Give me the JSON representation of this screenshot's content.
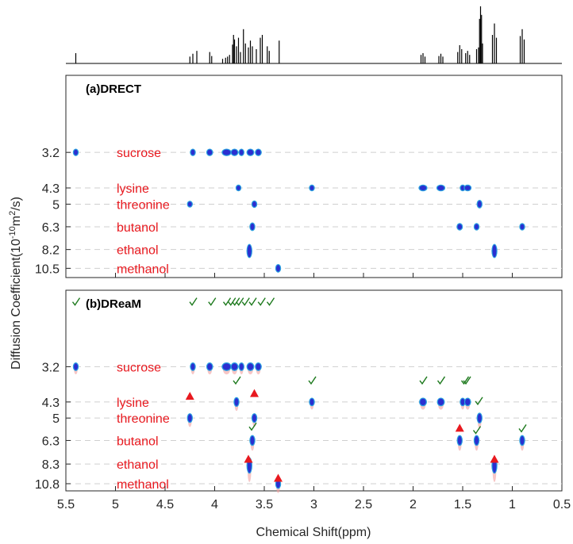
{
  "chart_data": {
    "type": "scatter",
    "xlabel": "Chemical Shift(ppm)",
    "ylabel": "Diffusion Coefficient(10",
    "ylabel_exp": "-10",
    "ylabel_mid": "m",
    "ylabel_exp2": "2",
    "ylabel_end": "/s)",
    "xlim": [
      5.5,
      0.5
    ],
    "x_ticks": [
      5.5,
      5,
      4.5,
      4,
      3.5,
      3,
      2.5,
      2,
      1.5,
      1,
      0.5
    ],
    "x_tick_labels": [
      "5.5",
      "5",
      "4.5",
      "4",
      "3.5",
      "3",
      "2.5",
      "2",
      "1.5",
      "1",
      "0.5"
    ],
    "colors": {
      "compound_label": "#e8191f",
      "peak_core": "#2b2fd0",
      "peak_edge": "#2aa3e0",
      "check": "#1e7a1e",
      "triangle": "#e8191f",
      "gridline": "#cfcfcf"
    },
    "spectrum": [
      {
        "x": 5.4,
        "h": 0.18
      },
      {
        "x": 4.25,
        "h": 0.12
      },
      {
        "x": 4.22,
        "h": 0.17
      },
      {
        "x": 4.18,
        "h": 0.22
      },
      {
        "x": 4.05,
        "h": 0.2
      },
      {
        "x": 4.03,
        "h": 0.13
      },
      {
        "x": 3.92,
        "h": 0.08
      },
      {
        "x": 3.89,
        "h": 0.1
      },
      {
        "x": 3.87,
        "h": 0.12
      },
      {
        "x": 3.85,
        "h": 0.15
      },
      {
        "x": 3.82,
        "h": 0.33
      },
      {
        "x": 3.81,
        "h": 0.5
      },
      {
        "x": 3.8,
        "h": 0.42
      },
      {
        "x": 3.78,
        "h": 0.3
      },
      {
        "x": 3.76,
        "h": 0.45
      },
      {
        "x": 3.74,
        "h": 0.2
      },
      {
        "x": 3.71,
        "h": 0.6
      },
      {
        "x": 3.69,
        "h": 0.35
      },
      {
        "x": 3.66,
        "h": 0.28
      },
      {
        "x": 3.64,
        "h": 0.4
      },
      {
        "x": 3.62,
        "h": 0.3
      },
      {
        "x": 3.58,
        "h": 0.25
      },
      {
        "x": 3.54,
        "h": 0.45
      },
      {
        "x": 3.52,
        "h": 0.5
      },
      {
        "x": 3.47,
        "h": 0.3
      },
      {
        "x": 3.45,
        "h": 0.22
      },
      {
        "x": 3.35,
        "h": 0.4
      },
      {
        "x": 1.92,
        "h": 0.15
      },
      {
        "x": 1.9,
        "h": 0.18
      },
      {
        "x": 1.88,
        "h": 0.12
      },
      {
        "x": 1.74,
        "h": 0.13
      },
      {
        "x": 1.72,
        "h": 0.17
      },
      {
        "x": 1.7,
        "h": 0.12
      },
      {
        "x": 1.55,
        "h": 0.2
      },
      {
        "x": 1.53,
        "h": 0.32
      },
      {
        "x": 1.51,
        "h": 0.25
      },
      {
        "x": 1.47,
        "h": 0.18
      },
      {
        "x": 1.45,
        "h": 0.22
      },
      {
        "x": 1.43,
        "h": 0.15
      },
      {
        "x": 1.36,
        "h": 0.25
      },
      {
        "x": 1.34,
        "h": 0.28
      },
      {
        "x": 1.33,
        "h": 0.78
      },
      {
        "x": 1.32,
        "h": 1.0
      },
      {
        "x": 1.31,
        "h": 0.85
      },
      {
        "x": 1.3,
        "h": 0.35
      },
      {
        "x": 1.2,
        "h": 0.5
      },
      {
        "x": 1.18,
        "h": 0.7
      },
      {
        "x": 1.16,
        "h": 0.45
      },
      {
        "x": 0.92,
        "h": 0.48
      },
      {
        "x": 0.9,
        "h": 0.6
      },
      {
        "x": 0.88,
        "h": 0.42
      }
    ],
    "panels": [
      {
        "label": "(a)DRECT",
        "ylim": [
          1.9,
          12.0
        ],
        "y_ticks": [
          3.2,
          4.3,
          5,
          6.3,
          8.2,
          10.5
        ],
        "y_tick_labels": [
          "3.2",
          "4.3",
          "5",
          "6.3",
          "8.2",
          "10.5"
        ],
        "compounds": [
          {
            "name": "sucrose",
            "d": 3.2
          },
          {
            "name": "lysine",
            "d": 4.3
          },
          {
            "name": "threonine",
            "d": 5
          },
          {
            "name": "butanol",
            "d": 6.3
          },
          {
            "name": "ethanol",
            "d": 8.2
          },
          {
            "name": "methanol",
            "d": 10.5
          }
        ],
        "peaks": [
          {
            "x": 5.4,
            "d": 3.2,
            "w": 0.035,
            "h": 0.25
          },
          {
            "x": 4.22,
            "d": 3.2,
            "w": 0.035,
            "h": 0.25
          },
          {
            "x": 4.05,
            "d": 3.2,
            "w": 0.05,
            "h": 0.25
          },
          {
            "x": 3.88,
            "d": 3.2,
            "w": 0.08,
            "h": 0.25
          },
          {
            "x": 3.8,
            "d": 3.2,
            "w": 0.06,
            "h": 0.25
          },
          {
            "x": 3.73,
            "d": 3.2,
            "w": 0.04,
            "h": 0.25
          },
          {
            "x": 3.64,
            "d": 3.2,
            "w": 0.06,
            "h": 0.25
          },
          {
            "x": 3.56,
            "d": 3.2,
            "w": 0.05,
            "h": 0.25
          },
          {
            "x": 3.76,
            "d": 4.3,
            "w": 0.02,
            "h": 0.2
          },
          {
            "x": 3.02,
            "d": 4.3,
            "w": 0.04,
            "h": 0.2
          },
          {
            "x": 1.9,
            "d": 4.3,
            "w": 0.07,
            "h": 0.22
          },
          {
            "x": 1.72,
            "d": 4.3,
            "w": 0.07,
            "h": 0.22
          },
          {
            "x": 1.5,
            "d": 4.3,
            "w": 0.03,
            "h": 0.18
          },
          {
            "x": 1.45,
            "d": 4.3,
            "w": 0.06,
            "h": 0.18
          },
          {
            "x": 4.25,
            "d": 5.0,
            "w": 0.04,
            "h": 0.22
          },
          {
            "x": 3.6,
            "d": 5.0,
            "w": 0.02,
            "h": 0.25
          },
          {
            "x": 1.33,
            "d": 5.0,
            "w": 0.025,
            "h": 0.3
          },
          {
            "x": 3.62,
            "d": 6.3,
            "w": 0.03,
            "h": 0.3
          },
          {
            "x": 1.53,
            "d": 6.3,
            "w": 0.045,
            "h": 0.25
          },
          {
            "x": 1.36,
            "d": 6.3,
            "w": 0.035,
            "h": 0.25
          },
          {
            "x": 0.9,
            "d": 6.3,
            "w": 0.035,
            "h": 0.25
          },
          {
            "x": 3.65,
            "d": 8.35,
            "w": 0.03,
            "h": 0.55
          },
          {
            "x": 1.18,
            "d": 8.35,
            "w": 0.03,
            "h": 0.55
          },
          {
            "x": 3.36,
            "d": 10.5,
            "w": 0.015,
            "h": 0.3
          }
        ]
      },
      {
        "label": "(b)DReaM",
        "ylim": [
          1.9,
          12.0
        ],
        "y_ticks": [
          3.2,
          4.3,
          5,
          6.3,
          8.3,
          10.8
        ],
        "y_tick_labels": [
          "3.2",
          "4.3",
          "5",
          "6.3",
          "8.3",
          "10.8"
        ],
        "compounds": [
          {
            "name": "sucrose",
            "d": 3.2
          },
          {
            "name": "lysine",
            "d": 4.3
          },
          {
            "name": "threonine",
            "d": 5
          },
          {
            "name": "butanol",
            "d": 6.3
          },
          {
            "name": "ethanol",
            "d": 8.3
          },
          {
            "name": "methanol",
            "d": 10.8
          }
        ],
        "peaks": [
          {
            "x": 5.4,
            "d": 3.2,
            "w": 0.035,
            "h": 0.3
          },
          {
            "x": 4.22,
            "d": 3.2,
            "w": 0.035,
            "h": 0.3
          },
          {
            "x": 4.05,
            "d": 3.2,
            "w": 0.05,
            "h": 0.3
          },
          {
            "x": 3.88,
            "d": 3.2,
            "w": 0.08,
            "h": 0.3
          },
          {
            "x": 3.8,
            "d": 3.2,
            "w": 0.06,
            "h": 0.3
          },
          {
            "x": 3.73,
            "d": 3.2,
            "w": 0.04,
            "h": 0.3
          },
          {
            "x": 3.64,
            "d": 3.2,
            "w": 0.06,
            "h": 0.3
          },
          {
            "x": 3.56,
            "d": 3.2,
            "w": 0.05,
            "h": 0.3
          },
          {
            "x": 3.78,
            "d": 4.3,
            "w": 0.025,
            "h": 0.35
          },
          {
            "x": 3.02,
            "d": 4.3,
            "w": 0.03,
            "h": 0.3
          },
          {
            "x": 1.9,
            "d": 4.3,
            "w": 0.06,
            "h": 0.3
          },
          {
            "x": 1.72,
            "d": 4.3,
            "w": 0.06,
            "h": 0.3
          },
          {
            "x": 1.5,
            "d": 4.3,
            "w": 0.03,
            "h": 0.3
          },
          {
            "x": 1.45,
            "d": 4.3,
            "w": 0.05,
            "h": 0.3
          },
          {
            "x": 4.25,
            "d": 5.0,
            "w": 0.03,
            "h": 0.35
          },
          {
            "x": 3.6,
            "d": 5.0,
            "w": 0.025,
            "h": 0.35
          },
          {
            "x": 1.33,
            "d": 5.0,
            "w": 0.025,
            "h": 0.4
          },
          {
            "x": 3.62,
            "d": 6.3,
            "w": 0.03,
            "h": 0.4
          },
          {
            "x": 1.53,
            "d": 6.3,
            "w": 0.04,
            "h": 0.4
          },
          {
            "x": 1.36,
            "d": 6.3,
            "w": 0.035,
            "h": 0.4
          },
          {
            "x": 0.9,
            "d": 6.3,
            "w": 0.035,
            "h": 0.4
          },
          {
            "x": 3.65,
            "d": 8.45,
            "w": 0.03,
            "h": 0.65
          },
          {
            "x": 1.18,
            "d": 8.45,
            "w": 0.03,
            "h": 0.65
          },
          {
            "x": 3.36,
            "d": 10.85,
            "w": 0.018,
            "h": 0.35
          }
        ],
        "checks": [
          {
            "x": 5.4,
            "d": 2.05
          },
          {
            "x": 4.22,
            "d": 2.05
          },
          {
            "x": 4.03,
            "d": 2.05
          },
          {
            "x": 3.88,
            "d": 2.05
          },
          {
            "x": 3.83,
            "d": 2.05
          },
          {
            "x": 3.79,
            "d": 2.05
          },
          {
            "x": 3.75,
            "d": 2.05
          },
          {
            "x": 3.69,
            "d": 2.05
          },
          {
            "x": 3.62,
            "d": 2.05
          },
          {
            "x": 3.53,
            "d": 2.05
          },
          {
            "x": 3.44,
            "d": 2.05
          },
          {
            "x": 3.78,
            "d": 3.6
          },
          {
            "x": 3.02,
            "d": 3.6
          },
          {
            "x": 1.9,
            "d": 3.6
          },
          {
            "x": 1.72,
            "d": 3.6
          },
          {
            "x": 1.48,
            "d": 3.6
          },
          {
            "x": 1.46,
            "d": 3.6
          },
          {
            "x": 1.34,
            "d": 4.3
          },
          {
            "x": 3.62,
            "d": 5.5
          },
          {
            "x": 1.36,
            "d": 5.7
          },
          {
            "x": 0.9,
            "d": 5.6
          }
        ],
        "triangles": [
          {
            "x": 4.25,
            "d": 4.1
          },
          {
            "x": 3.6,
            "d": 4.0
          },
          {
            "x": 1.53,
            "d": 5.55
          },
          {
            "x": 3.66,
            "d": 7.85
          },
          {
            "x": 1.18,
            "d": 7.85
          },
          {
            "x": 3.36,
            "d": 10.05
          }
        ]
      }
    ]
  }
}
